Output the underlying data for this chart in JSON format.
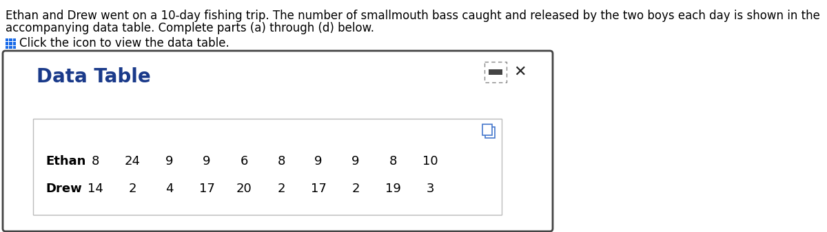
{
  "title_line1": "Ethan and Drew went on a 10-day fishing trip. The number of smallmouth bass caught and released by the two boys each day is shown in the",
  "title_line2": "accompanying data table. Complete parts (a) through (d) below.",
  "click_text": "Click the icon to view the data table.",
  "data_table_title": "Data Table",
  "ethan_label": "Ethan",
  "drew_label": "Drew",
  "ethan_values": [
    8,
    24,
    9,
    9,
    6,
    8,
    9,
    9,
    8,
    10
  ],
  "drew_values": [
    14,
    2,
    4,
    17,
    20,
    2,
    17,
    2,
    19,
    3
  ],
  "bg_color": "#ffffff",
  "panel_bg": "#ffffff",
  "panel_border": "#444444",
  "inner_table_border": "#bbbbbb",
  "title_color": "#000000",
  "data_table_title_color": "#1a3a8a",
  "label_fontsize": 13,
  "title_fontsize": 12,
  "data_table_title_fontsize": 20,
  "click_text_fontsize": 12
}
